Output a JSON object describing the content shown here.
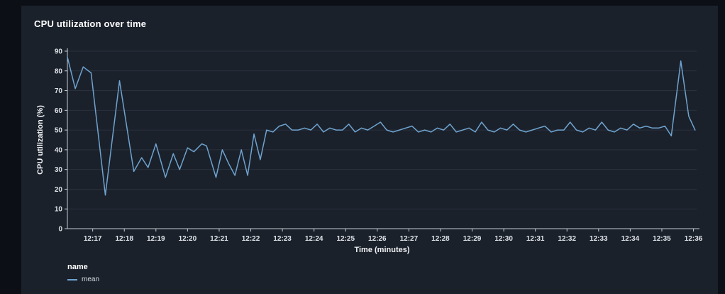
{
  "legend": {
    "header": "name",
    "items": [
      {
        "label": "mean",
        "color": "#6fa3cf"
      }
    ]
  },
  "colors": {
    "page_background": "#0c1016",
    "panel_background": "#1a212b",
    "grid_line": "#2a313c",
    "axis_line": "#c7ccd1",
    "tick_text": "#dfe3e8",
    "series_line": "#6fa3cf",
    "title_text": "#ffffff"
  },
  "chart_data": {
    "type": "line",
    "title": "CPU utilization over time",
    "xlabel": "Time (minutes)",
    "ylabel": "CPU utilization (%)",
    "x_unit": "minutes after 12:00",
    "xlim": [
      16.2,
      36.1
    ],
    "ylim": [
      0,
      90
    ],
    "grid": "horizontal",
    "legend_position": "bottom-left",
    "x_ticks": [
      17,
      18,
      19,
      20,
      21,
      22,
      23,
      24,
      25,
      26,
      27,
      28,
      29,
      30,
      31,
      32,
      33,
      34,
      35,
      36
    ],
    "x_tick_labels": [
      "12:17",
      "12:18",
      "12:19",
      "12:20",
      "12:21",
      "12:22",
      "12:23",
      "12:24",
      "12:25",
      "12:26",
      "12:27",
      "12:28",
      "12:29",
      "12:30",
      "12:31",
      "12:32",
      "12:33",
      "12:34",
      "12:35",
      "12:36"
    ],
    "y_ticks": [
      0,
      10,
      20,
      30,
      40,
      50,
      60,
      70,
      80,
      90
    ],
    "series": [
      {
        "name": "mean",
        "color": "#6fa3cf",
        "x": [
          16.2,
          16.45,
          16.7,
          16.95,
          17.4,
          17.85,
          18.3,
          18.55,
          18.75,
          19.0,
          19.3,
          19.55,
          19.75,
          20.0,
          20.2,
          20.45,
          20.6,
          20.9,
          21.1,
          21.3,
          21.5,
          21.7,
          21.9,
          22.1,
          22.3,
          22.5,
          22.7,
          22.9,
          23.1,
          23.3,
          23.5,
          23.7,
          23.9,
          24.1,
          24.3,
          24.5,
          24.7,
          24.9,
          25.1,
          25.3,
          25.5,
          25.7,
          25.9,
          26.1,
          26.3,
          26.5,
          26.7,
          26.9,
          27.1,
          27.3,
          27.5,
          27.7,
          27.9,
          28.1,
          28.3,
          28.5,
          28.7,
          28.9,
          29.1,
          29.3,
          29.5,
          29.7,
          29.9,
          30.1,
          30.3,
          30.5,
          30.7,
          30.9,
          31.1,
          31.3,
          31.5,
          31.7,
          31.9,
          32.1,
          32.3,
          32.5,
          32.7,
          32.9,
          33.1,
          33.3,
          33.5,
          33.7,
          33.9,
          34.1,
          34.3,
          34.5,
          34.7,
          34.9,
          35.1,
          35.3,
          35.6,
          35.85,
          36.05
        ],
        "y": [
          87,
          71,
          82,
          79,
          17,
          75,
          29,
          36,
          31,
          43,
          26,
          38,
          30,
          41,
          39,
          43,
          42,
          26,
          40,
          33,
          27,
          40,
          27,
          48,
          35,
          50,
          49,
          52,
          53,
          50,
          50,
          51,
          50,
          53,
          49,
          51,
          50,
          50,
          53,
          49,
          51,
          50,
          52,
          54,
          50,
          49,
          50,
          51,
          52,
          49,
          50,
          49,
          51,
          50,
          53,
          49,
          50,
          51,
          49,
          54,
          50,
          49,
          51,
          50,
          53,
          50,
          49,
          50,
          51,
          52,
          49,
          50,
          50,
          54,
          50,
          49,
          51,
          50,
          54,
          50,
          49,
          51,
          50,
          53,
          51,
          52,
          51,
          51,
          52,
          47,
          85,
          57,
          50
        ]
      }
    ]
  }
}
